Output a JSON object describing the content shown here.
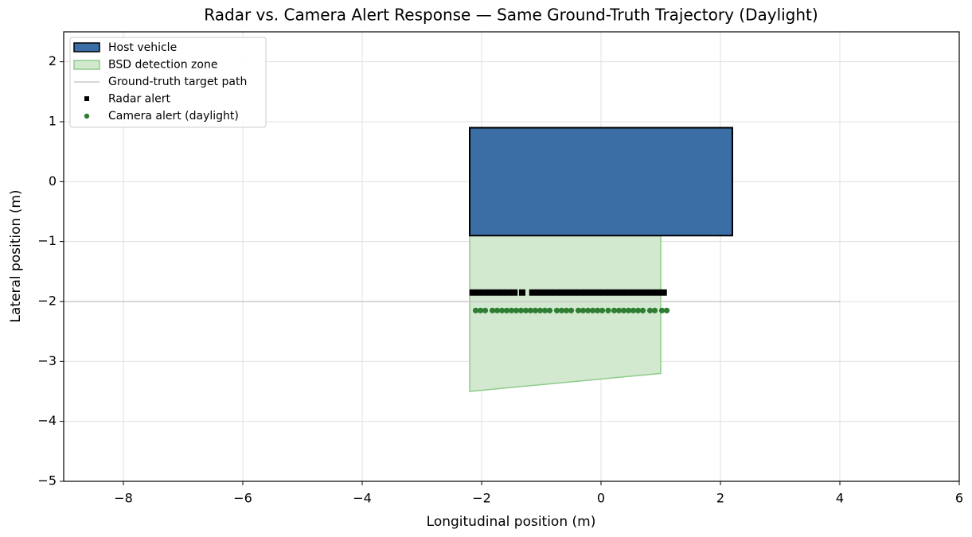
{
  "chart_data": {
    "type": "scatter",
    "title": "Radar vs. Camera Alert Response — Same Ground-Truth Trajectory (Daylight)",
    "x_label": "Longitudinal position (m)",
    "y_label": "Lateral position (m)",
    "xlim": [
      -9,
      6
    ],
    "ylim": [
      -5,
      2.5
    ],
    "xticks": [
      {
        "value": -8,
        "label": "−8"
      },
      {
        "value": -6,
        "label": "−6"
      },
      {
        "value": -4,
        "label": "−4"
      },
      {
        "value": -2,
        "label": "−2"
      },
      0,
      2,
      4,
      6
    ],
    "yticks": [
      {
        "value": -5,
        "label": "−5"
      },
      {
        "value": -4,
        "label": "−4"
      },
      {
        "value": -3,
        "label": "−3"
      },
      {
        "value": -2,
        "label": "−2"
      },
      {
        "value": -1,
        "label": "−1"
      },
      0,
      1,
      2
    ],
    "grid": true,
    "legend_loc": "upper left",
    "host_vehicle": {
      "name": "Host vehicle",
      "color": "#3a6ea5",
      "edge_color": "#000000",
      "x": [
        -2.2,
        2.2
      ],
      "y": [
        -0.9,
        0.9
      ]
    },
    "detection_zone": {
      "name": "BSD detection zone",
      "color": "#d2e9d0",
      "edge_color": "#8fcc8a",
      "x": [
        -2.2,
        1.0,
        1.0,
        -2.2
      ],
      "y": [
        -0.9,
        -0.9,
        -3.2,
        -3.5
      ]
    },
    "path": {
      "name": "Ground-truth target path",
      "color": "#c8c8c8",
      "x": [
        -9,
        4
      ],
      "y": [
        -2,
        -2
      ]
    },
    "series": [
      {
        "name": "Radar alert",
        "marker": "square",
        "color": "#000000",
        "x": [
          -2.15,
          -2.05,
          -1.95,
          -1.85,
          -1.75,
          -1.65,
          -1.55,
          -1.45,
          -1.32,
          -1.15,
          -1.05,
          -0.95,
          -0.85,
          -0.75,
          -0.65,
          -0.55,
          -0.45,
          -0.35,
          -0.25,
          -0.15,
          -0.05,
          0.05,
          0.15,
          0.25,
          0.35,
          0.45,
          0.55,
          0.65,
          0.75,
          0.85,
          0.95,
          1.05
        ],
        "y": [
          -1.85,
          -1.85,
          -1.85,
          -1.85,
          -1.85,
          -1.85,
          -1.85,
          -1.85,
          -1.85,
          -1.85,
          -1.85,
          -1.85,
          -1.85,
          -1.85,
          -1.85,
          -1.85,
          -1.85,
          -1.85,
          -1.85,
          -1.85,
          -1.85,
          -1.85,
          -1.85,
          -1.85,
          -1.85,
          -1.85,
          -1.85,
          -1.85,
          -1.85,
          -1.85,
          -1.85,
          -1.85
        ]
      },
      {
        "name": "Camera alert (daylight)",
        "marker": "circle",
        "color": "#2e7d32",
        "x": [
          -2.1,
          -2.02,
          -1.94,
          -1.82,
          -1.74,
          -1.66,
          -1.58,
          -1.5,
          -1.42,
          -1.34,
          -1.26,
          -1.18,
          -1.1,
          -1.02,
          -0.94,
          -0.86,
          -0.74,
          -0.66,
          -0.58,
          -0.5,
          -0.38,
          -0.3,
          -0.22,
          -0.14,
          -0.06,
          0.02,
          0.12,
          0.22,
          0.3,
          0.38,
          0.46,
          0.54,
          0.62,
          0.7,
          0.82,
          0.9,
          1.02,
          1.1
        ],
        "y": [
          -2.15,
          -2.15,
          -2.15,
          -2.15,
          -2.15,
          -2.15,
          -2.15,
          -2.15,
          -2.15,
          -2.15,
          -2.15,
          -2.15,
          -2.15,
          -2.15,
          -2.15,
          -2.15,
          -2.15,
          -2.15,
          -2.15,
          -2.15,
          -2.15,
          -2.15,
          -2.15,
          -2.15,
          -2.15,
          -2.15,
          -2.15,
          -2.15,
          -2.15,
          -2.15,
          -2.15,
          -2.15,
          -2.15,
          -2.15,
          -2.15,
          -2.15,
          -2.15,
          -2.15
        ]
      }
    ]
  }
}
